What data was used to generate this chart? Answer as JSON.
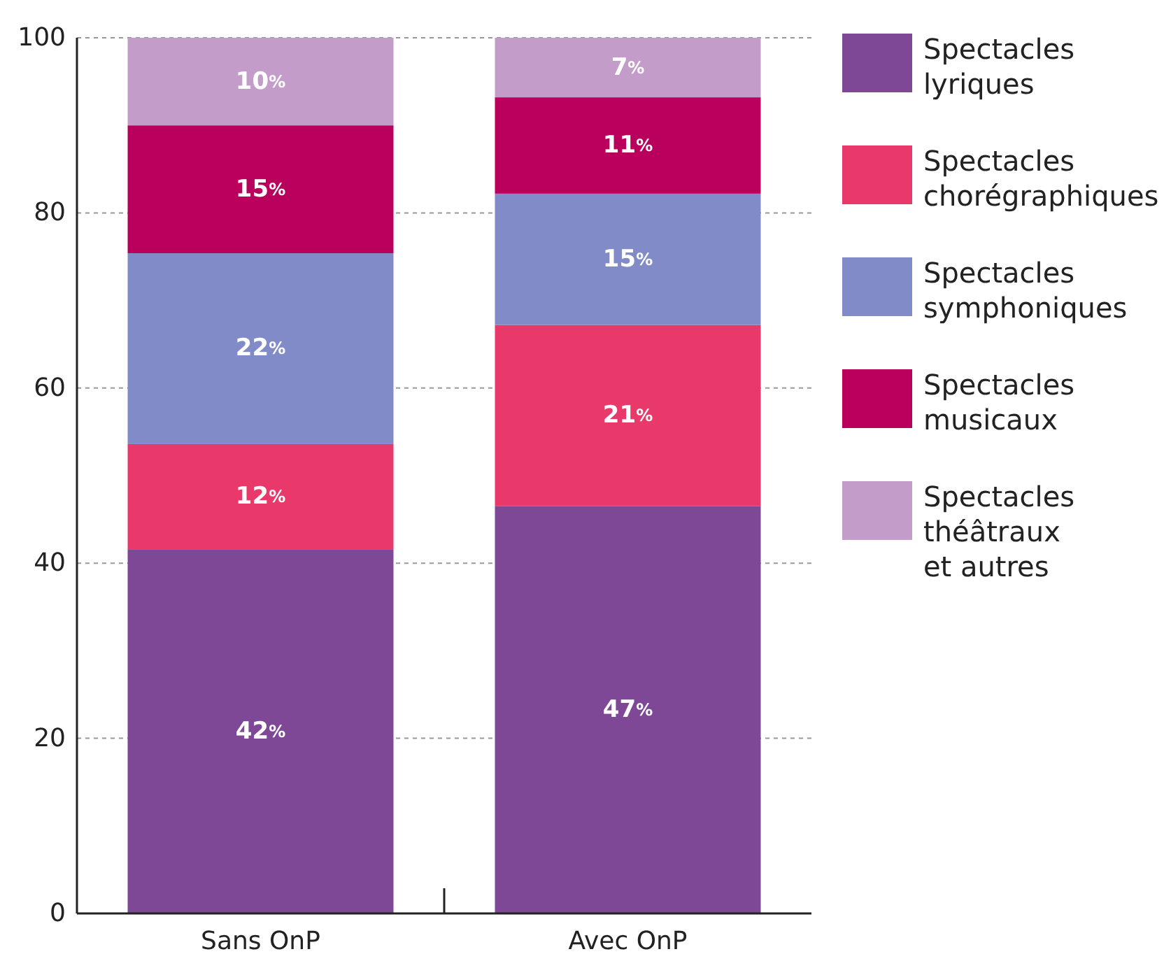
{
  "chart_data": {
    "type": "bar",
    "stacked": true,
    "categories": [
      "Sans OnP",
      "Avec OnP"
    ],
    "series": [
      {
        "name": "Spectacles lyriques",
        "color": "#7f4896",
        "values": [
          41.6,
          46.5
        ],
        "value_labels": [
          "42%",
          "47%"
        ]
      },
      {
        "name": "Spectacles chorégraphiques",
        "color": "#e8396a",
        "values": [
          12,
          20.7
        ],
        "value_labels": [
          "12%",
          "21%"
        ]
      },
      {
        "name": "Spectacles symphoniques",
        "color": "#808bc7",
        "values": [
          21.8,
          15
        ],
        "value_labels": [
          "22%",
          "15%"
        ]
      },
      {
        "name": "Spectacles musicaux",
        "color": "#b8005c",
        "values": [
          14.6,
          11
        ],
        "value_labels": [
          "15%",
          "11%"
        ]
      },
      {
        "name": "Spectacles théâtraux et autres",
        "color": "#c39cca",
        "values": [
          10,
          6.8
        ],
        "value_labels": [
          "10%",
          "7%"
        ]
      }
    ],
    "ylim": [
      0,
      100
    ],
    "yticks": [
      0,
      20,
      40,
      60,
      80,
      100
    ],
    "grid": "y",
    "legend": "right"
  }
}
